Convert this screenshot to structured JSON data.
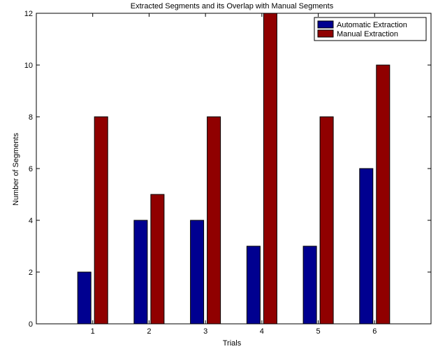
{
  "chart_data": {
    "type": "bar",
    "title": "Extracted Segments and its Overlap with Manual Segments",
    "xlabel": "Trials",
    "ylabel": "Number of Segments",
    "categories": [
      "1",
      "2",
      "3",
      "4",
      "5",
      "6"
    ],
    "xlim": [
      0,
      7
    ],
    "ylim": [
      0,
      12
    ],
    "yticks": [
      0,
      2,
      4,
      6,
      8,
      10,
      12
    ],
    "grid": false,
    "legend_position": "top-right",
    "series": [
      {
        "name": "Automatic Extraction",
        "color": "#000090",
        "values": [
          2,
          4,
          4,
          3,
          3,
          6
        ]
      },
      {
        "name": "Manual Extraction",
        "color": "#900000",
        "values": [
          8,
          5,
          8,
          12,
          8,
          10
        ]
      }
    ]
  }
}
